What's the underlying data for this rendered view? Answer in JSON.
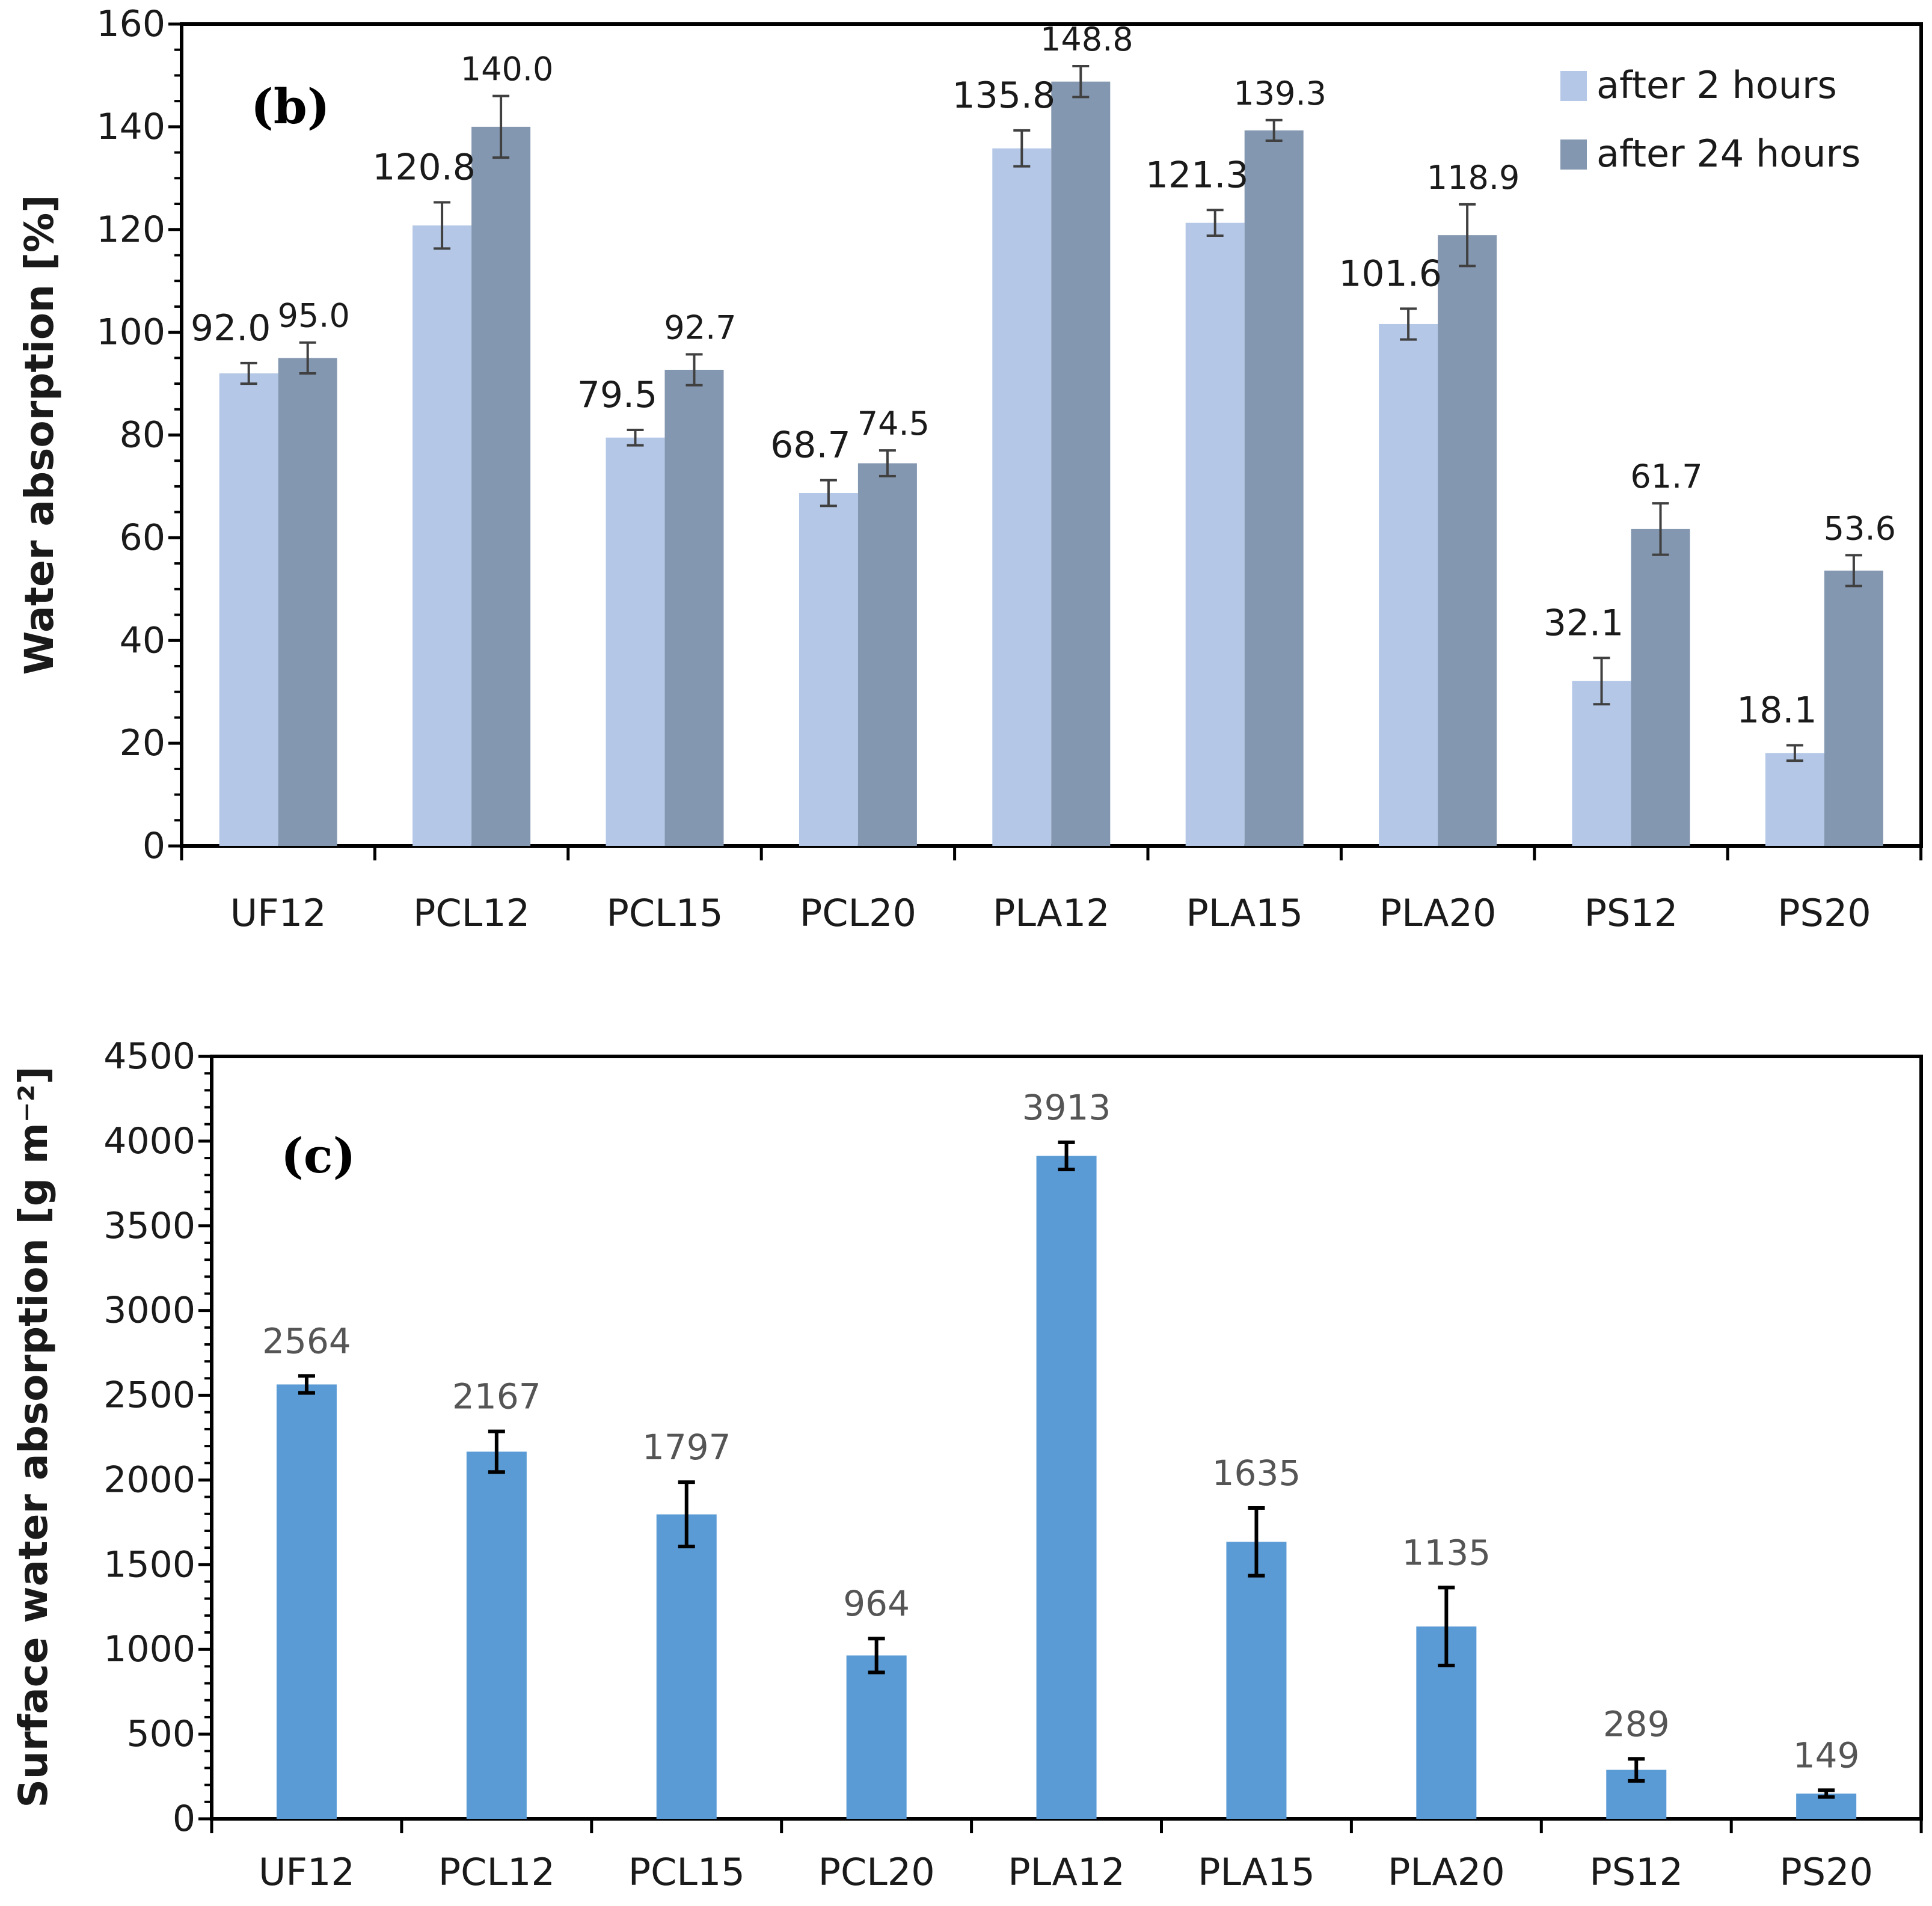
{
  "chart_data": [
    {
      "type": "bar",
      "panel_label": "b",
      "categories": [
        "UF12",
        "PCL12",
        "PCL15",
        "PCL20",
        "PLA12",
        "PLA15",
        "PLA20",
        "PS12",
        "PS20"
      ],
      "series": [
        {
          "name": "after 2 hours",
          "color": "#b4c7e7",
          "values": [
            92.0,
            120.8,
            79.5,
            68.7,
            135.8,
            121.3,
            101.6,
            32.1,
            18.1
          ],
          "errors": [
            2,
            4.5,
            1.5,
            2.5,
            3.5,
            2.5,
            3,
            4.5,
            1.5
          ],
          "labels": [
            "92.0",
            "120.8",
            "79.5",
            "68.7",
            "135.8",
            "121.3",
            "101.6",
            "32.1",
            "18.1"
          ]
        },
        {
          "name": "after 24 hours",
          "color": "#8497b0",
          "values": [
            95.0,
            140.0,
            92.7,
            74.5,
            148.8,
            139.3,
            118.9,
            61.7,
            53.6
          ],
          "errors": [
            3,
            6,
            3,
            2.5,
            3,
            2,
            6,
            5,
            3
          ],
          "labels": [
            "95.0",
            "140.0",
            "92.7",
            "74.5",
            "148.8",
            "139.3",
            "118.9",
            "61.7",
            "53.6"
          ]
        }
      ],
      "xlabel": "",
      "ylabel": "Water absorption [%]",
      "ylim": [
        0,
        160
      ],
      "yticks": [
        0,
        20,
        40,
        60,
        80,
        100,
        120,
        140,
        160
      ],
      "yticks_labels": [
        "0",
        "20",
        "40",
        "60",
        "80",
        "100",
        "120",
        "140",
        "160"
      ],
      "legend_position": "top-right",
      "grid": false
    },
    {
      "type": "bar",
      "panel_label": "c",
      "categories": [
        "UF12",
        "PCL12",
        "PCL15",
        "PCL20",
        "PLA12",
        "PLA15",
        "PLA20",
        "PS12",
        "PS20"
      ],
      "series": [
        {
          "name": "Surface water absorption",
          "color": "#5b9bd5",
          "values": [
            2564,
            2167,
            1797,
            964,
            3913,
            1635,
            1135,
            289,
            149
          ],
          "errors": [
            50,
            120,
            190,
            100,
            80,
            200,
            230,
            65,
            20
          ],
          "labels": [
            "2564",
            "2167",
            "1797",
            "964",
            "3913",
            "1635",
            "1135",
            "289",
            "149"
          ]
        }
      ],
      "xlabel": "",
      "ylabel": "Surface water absorption [g m⁻²]",
      "ylim": [
        0,
        4500
      ],
      "yticks": [
        0,
        500,
        1000,
        1500,
        2000,
        2500,
        3000,
        3500,
        4000,
        4500
      ],
      "yticks_labels": [
        "0",
        "500",
        "1000",
        "1500",
        "2000",
        "2500",
        "3000",
        "3500",
        "4000",
        "4500"
      ],
      "legend_position": "none",
      "grid": false
    }
  ]
}
